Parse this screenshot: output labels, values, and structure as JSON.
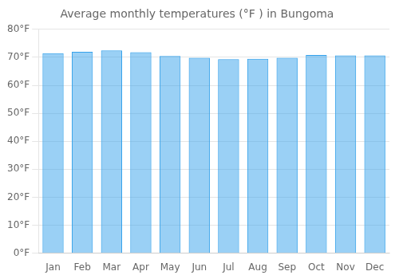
{
  "chart_data": {
    "type": "bar",
    "title": "Average monthly temperatures (°F ) in Bungoma",
    "categories": [
      "Jan",
      "Feb",
      "Mar",
      "Apr",
      "May",
      "Jun",
      "Jul",
      "Aug",
      "Sep",
      "Oct",
      "Nov",
      "Dec"
    ],
    "values": [
      71.5,
      72.0,
      72.5,
      71.8,
      70.5,
      69.8,
      69.3,
      69.5,
      69.8,
      70.8,
      70.7,
      70.7
    ],
    "ylim": [
      0,
      80
    ],
    "yticks": [
      {
        "value": 0,
        "label": "0°F"
      },
      {
        "value": 10,
        "label": "10°F"
      },
      {
        "value": 20,
        "label": "20°F"
      },
      {
        "value": 30,
        "label": "30°F"
      },
      {
        "value": 40,
        "label": "40°F"
      },
      {
        "value": 50,
        "label": "50°F"
      },
      {
        "value": 60,
        "label": "60°F"
      },
      {
        "value": 70,
        "label": "70°F"
      },
      {
        "value": 80,
        "label": "80°F"
      }
    ],
    "grid": true
  }
}
